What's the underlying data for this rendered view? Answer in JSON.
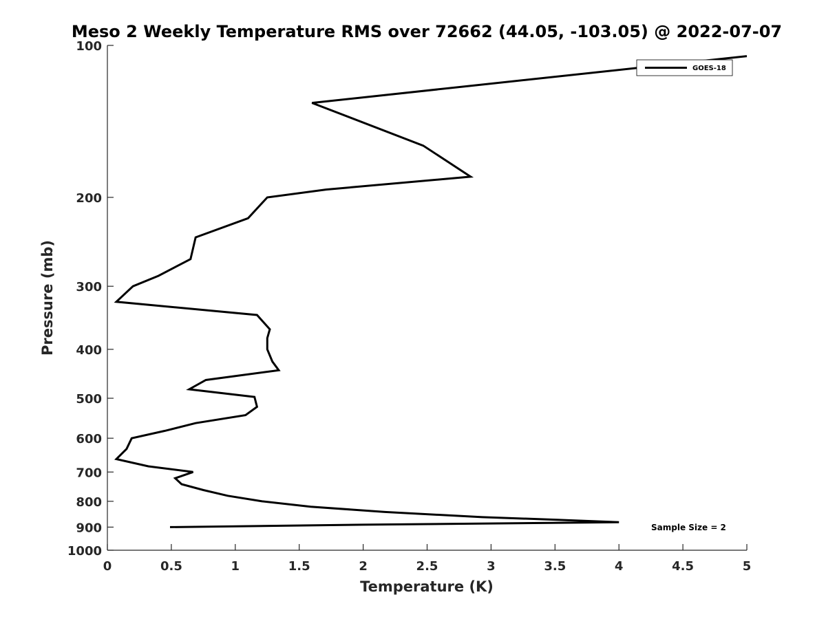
{
  "chart_data": {
    "type": "line",
    "title": "Meso 2 Weekly Temperature RMS over 72662 (44.05, -103.05) @ 2022-07-07",
    "xlabel": "Temperature (K)",
    "ylabel": "Pressure (mb)",
    "xlim": [
      0,
      5
    ],
    "ylim": [
      100,
      1000
    ],
    "y_scale": "log",
    "y_reversed": true,
    "grid": false,
    "legend_position": "top-right",
    "x_ticks": [
      "0",
      "0.5",
      "1",
      "1.5",
      "2",
      "2.5",
      "3",
      "3.5",
      "4",
      "4.5",
      "5"
    ],
    "y_ticks": [
      "100",
      "200",
      "300",
      "400",
      "500",
      "600",
      "700",
      "800",
      "900",
      "1000"
    ],
    "annotation": "Sample Size = 2",
    "series": [
      {
        "name": "GOES-18",
        "color": "#000000",
        "points": [
          [
            5.0,
            105
          ],
          [
            1.6,
            130
          ],
          [
            2.47,
            158
          ],
          [
            2.84,
            182
          ],
          [
            1.71,
            193
          ],
          [
            1.25,
            200
          ],
          [
            1.1,
            220
          ],
          [
            0.69,
            240
          ],
          [
            0.65,
            265
          ],
          [
            0.4,
            286
          ],
          [
            0.2,
            300
          ],
          [
            0.07,
            322
          ],
          [
            1.17,
            342
          ],
          [
            1.27,
            365
          ],
          [
            1.25,
            380
          ],
          [
            1.25,
            400
          ],
          [
            1.29,
            423
          ],
          [
            1.34,
            440
          ],
          [
            0.77,
            460
          ],
          [
            0.64,
            480
          ],
          [
            1.15,
            497
          ],
          [
            1.17,
            520
          ],
          [
            1.08,
            540
          ],
          [
            0.69,
            560
          ],
          [
            0.45,
            580
          ],
          [
            0.19,
            600
          ],
          [
            0.15,
            630
          ],
          [
            0.07,
            660
          ],
          [
            0.32,
            682
          ],
          [
            0.67,
            700
          ],
          [
            0.53,
            720
          ],
          [
            0.58,
            740
          ],
          [
            0.75,
            760
          ],
          [
            0.94,
            780
          ],
          [
            1.21,
            800
          ],
          [
            1.59,
            820
          ],
          [
            2.17,
            840
          ],
          [
            2.93,
            860
          ],
          [
            3.5,
            870
          ],
          [
            4.0,
            880
          ],
          [
            2.0,
            890
          ],
          [
            0.49,
            900
          ]
        ]
      }
    ]
  }
}
